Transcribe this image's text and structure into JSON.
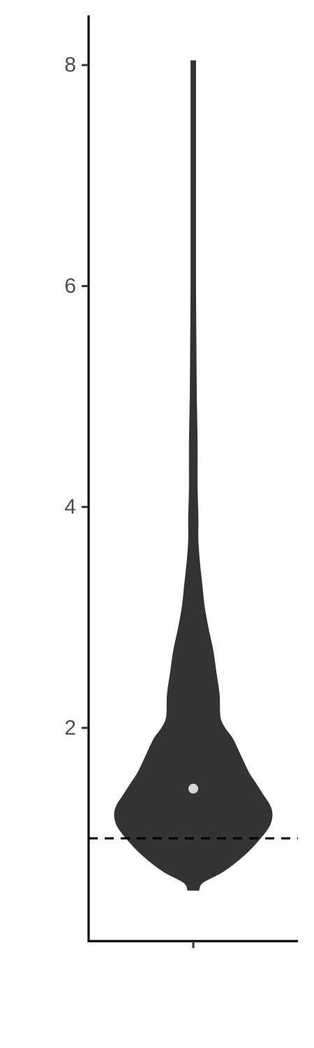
{
  "chart_data": {
    "type": "violin",
    "title": "",
    "xlabel": "",
    "ylabel": "",
    "categories": [
      ""
    ],
    "ylim": [
      0.07,
      8.45
    ],
    "y_ticks": [
      2,
      4,
      6,
      8
    ],
    "y_tick_labels": [
      "2",
      "4",
      "6",
      "8"
    ],
    "grid": false,
    "legend": "none",
    "reference_line": {
      "y": 1.0,
      "style": "dashed",
      "color": "#000000"
    },
    "violin": {
      "min": 0.53,
      "max": 8.04,
      "point": {
        "y": 1.45,
        "color": "#d9d9d9"
      },
      "fill": "#333333",
      "width_profile": [
        {
          "y": 0.53,
          "w": 0.07
        },
        {
          "y": 0.6,
          "w": 0.12
        },
        {
          "y": 0.7,
          "w": 0.38
        },
        {
          "y": 0.85,
          "w": 0.65
        },
        {
          "y": 1.0,
          "w": 0.85
        },
        {
          "y": 1.12,
          "w": 0.97
        },
        {
          "y": 1.22,
          "w": 1.0
        },
        {
          "y": 1.3,
          "w": 0.97
        },
        {
          "y": 1.4,
          "w": 0.88
        },
        {
          "y": 1.5,
          "w": 0.79
        },
        {
          "y": 1.6,
          "w": 0.7
        },
        {
          "y": 1.75,
          "w": 0.6
        },
        {
          "y": 1.9,
          "w": 0.5
        },
        {
          "y": 2.0,
          "w": 0.4
        },
        {
          "y": 2.1,
          "w": 0.34
        },
        {
          "y": 2.3,
          "w": 0.33
        },
        {
          "y": 2.5,
          "w": 0.29
        },
        {
          "y": 2.7,
          "w": 0.25
        },
        {
          "y": 2.9,
          "w": 0.19
        },
        {
          "y": 3.1,
          "w": 0.14
        },
        {
          "y": 3.3,
          "w": 0.11
        },
        {
          "y": 3.5,
          "w": 0.08
        },
        {
          "y": 3.7,
          "w": 0.06
        },
        {
          "y": 3.9,
          "w": 0.06
        },
        {
          "y": 4.2,
          "w": 0.05
        },
        {
          "y": 4.6,
          "w": 0.05
        },
        {
          "y": 5.0,
          "w": 0.04
        },
        {
          "y": 5.5,
          "w": 0.035
        },
        {
          "y": 6.0,
          "w": 0.03
        },
        {
          "y": 7.0,
          "w": 0.03
        },
        {
          "y": 8.04,
          "w": 0.03
        }
      ]
    }
  }
}
